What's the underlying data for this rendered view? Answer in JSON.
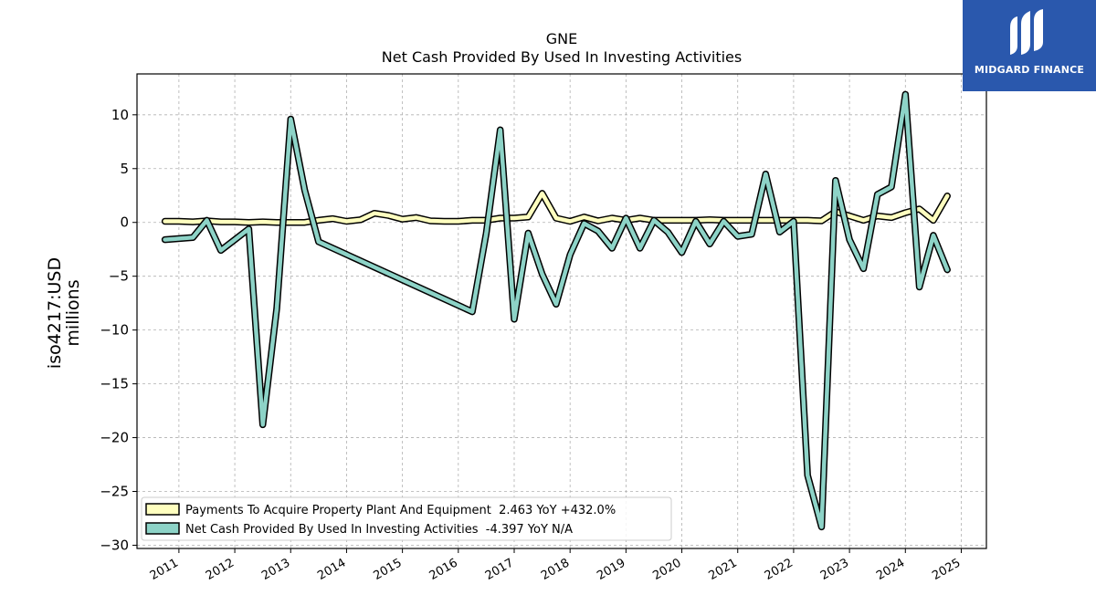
{
  "logo": {
    "text": "MIDGARD FINANCE",
    "icon": "midgard-logo-icon",
    "background": "#2a58ad"
  },
  "chart_data": {
    "type": "line",
    "title": "GNE",
    "subtitle": "Net Cash Provided By Used In Investing Activities",
    "ylabel_line1": "iso4217:USD",
    "ylabel_line2": "millions",
    "xlabel": "",
    "ylim": [
      -30.3,
      13.8
    ],
    "xlim": [
      2010.25,
      2025.45
    ],
    "yticks": [
      10,
      5,
      0,
      -5,
      -10,
      -15,
      -20,
      -25,
      -30
    ],
    "ytick_labels": [
      "10",
      "5",
      "0",
      "−5",
      "−10",
      "−15",
      "−20",
      "−25",
      "−30"
    ],
    "xticks": [
      2011,
      2012,
      2013,
      2014,
      2015,
      2016,
      2017,
      2018,
      2019,
      2020,
      2021,
      2022,
      2023,
      2024,
      2025
    ],
    "xtick_labels": [
      "2011",
      "2012",
      "2013",
      "2014",
      "2015",
      "2016",
      "2017",
      "2018",
      "2019",
      "2020",
      "2021",
      "2022",
      "2023",
      "2024",
      "2025"
    ],
    "grid": true,
    "legend_position": "lower-left",
    "series": [
      {
        "name": "Payments To Acquire Property Plant And Equipment  2.463 YoY +432.0%",
        "color": "#ffffbf",
        "edge": "#000000",
        "x": [
          2010.75,
          2011.0,
          2011.25,
          2011.5,
          2011.75,
          2012.0,
          2012.25,
          2012.5,
          2012.75,
          2013.0,
          2013.25,
          2013.5,
          2013.75,
          2014.0,
          2014.25,
          2014.5,
          2014.75,
          2015.0,
          2015.25,
          2015.5,
          2015.75,
          2016.0,
          2016.25,
          2016.5,
          2016.75,
          2017.0,
          2017.25,
          2017.5,
          2017.75,
          2018.0,
          2018.25,
          2018.5,
          2018.75,
          2019.0,
          2019.25,
          2019.5,
          2019.75,
          2020.0,
          2020.25,
          2020.5,
          2020.75,
          2021.0,
          2021.25,
          2021.5,
          2021.75,
          2022.0,
          2022.25,
          2022.5,
          2022.75,
          2023.0,
          2023.25,
          2023.5,
          2023.75,
          2024.0,
          2024.25,
          2024.5,
          2024.75
        ],
        "y": [
          0.1,
          0.1,
          0.05,
          0.15,
          0.05,
          0.05,
          0.0,
          0.05,
          0.0,
          0.0,
          0.0,
          0.2,
          0.35,
          0.1,
          0.25,
          0.85,
          0.65,
          0.3,
          0.45,
          0.15,
          0.1,
          0.1,
          0.2,
          0.2,
          0.4,
          0.4,
          0.5,
          2.7,
          0.4,
          0.1,
          0.5,
          0.15,
          0.4,
          0.2,
          0.4,
          0.2,
          0.2,
          0.2,
          0.2,
          0.25,
          0.2,
          0.2,
          0.2,
          0.2,
          0.2,
          0.2,
          0.2,
          0.15,
          1.0,
          0.6,
          0.2,
          0.6,
          0.45,
          0.9,
          1.25,
          0.2,
          2.463
        ]
      },
      {
        "name": "Net Cash Provided By Used In Investing Activities  -4.397 YoY N/A",
        "color": "#8dd3c7",
        "edge": "#000000",
        "x": [
          2010.75,
          2011.25,
          2011.5,
          2011.75,
          2012.0,
          2012.25,
          2012.5,
          2012.75,
          2013.0,
          2013.25,
          2013.5,
          2016.25,
          2016.5,
          2016.75,
          2017.0,
          2017.25,
          2017.5,
          2017.75,
          2018.0,
          2018.25,
          2018.5,
          2018.75,
          2019.0,
          2019.25,
          2019.5,
          2019.75,
          2020.0,
          2020.25,
          2020.5,
          2020.75,
          2021.0,
          2021.25,
          2021.5,
          2021.75,
          2022.0,
          2022.25,
          2022.5,
          2022.75,
          2023.0,
          2023.25,
          2023.5,
          2023.75,
          2024.0,
          2024.25,
          2024.5,
          2024.75
        ],
        "y": [
          -1.6,
          -1.4,
          0.2,
          -2.6,
          -1.6,
          -0.6,
          -18.8,
          -8.0,
          9.6,
          3.0,
          -1.8,
          -8.3,
          -1.0,
          8.6,
          -9.0,
          -1.0,
          -4.8,
          -7.6,
          -3.0,
          -0.1,
          -0.8,
          -2.4,
          0.4,
          -2.4,
          0.2,
          -0.9,
          -2.8,
          0.1,
          -2.0,
          0.1,
          -1.3,
          -1.1,
          4.5,
          -0.9,
          0.1,
          -23.5,
          -28.3,
          3.9,
          -1.6,
          -4.3,
          2.6,
          3.3,
          11.9,
          -6.0,
          -1.2,
          -4.397
        ]
      }
    ]
  }
}
